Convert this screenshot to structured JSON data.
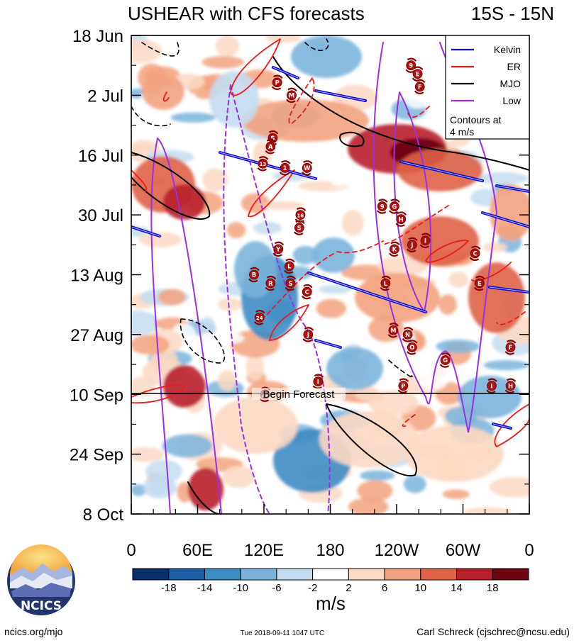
{
  "header": {
    "title": "USHEAR with CFS forecasts",
    "region": "15S - 15N"
  },
  "chart_data": {
    "type": "heatmap",
    "title": "USHEAR with CFS forecasts",
    "region": "15S - 15N",
    "x_tick_labels": [
      "0",
      "60E",
      "120E",
      "180",
      "120W",
      "60W",
      "0"
    ],
    "x_tick_values_deg_east": [
      0,
      60,
      120,
      180,
      240,
      300,
      360
    ],
    "y_tick_labels": [
      "18 Jun",
      "2 Jul",
      "16 Jul",
      "30 Jul",
      "13 Aug",
      "27 Aug",
      "10 Sep",
      "24 Sep",
      "8 Oct"
    ],
    "forecast_start_date": "10 Sep",
    "forecast_label": "Begin Forecast",
    "colorbar": {
      "unit_label": "m/s",
      "tick_labels": [
        "-18",
        "-14",
        "-10",
        "-6",
        "-2",
        "2",
        "6",
        "10",
        "14",
        "18"
      ],
      "colors": [
        "#08306b",
        "#1c5fa6",
        "#3d8cc4",
        "#7ab4dc",
        "#c4dcef",
        "#ffffff",
        "#fcd9c3",
        "#f3a37f",
        "#de6347",
        "#b8202b",
        "#6b0313"
      ]
    },
    "legend": {
      "placement": "top-right",
      "entries": [
        {
          "name": "Kelvin",
          "color": "#0b0bd8"
        },
        {
          "name": "ER",
          "color": "#ee1a1a"
        },
        {
          "name": "MJO",
          "color": "#000000"
        },
        {
          "name": "Low",
          "color": "#9a30e6"
        }
      ],
      "note_lines": [
        "Contours at",
        "4 m/s"
      ]
    },
    "storm_markers": [
      {
        "label": "9",
        "lon": 253,
        "date": "25 Jun"
      },
      {
        "label": "E",
        "lon": 259,
        "date": "27 Jun"
      },
      {
        "label": "P",
        "lon": 132,
        "date": "29 Jun"
      },
      {
        "label": "F",
        "lon": 261,
        "date": "30 Jun"
      },
      {
        "label": "M",
        "lon": 145,
        "date": "2 Jul"
      },
      {
        "label": "S",
        "lon": 128,
        "date": "12 Jul"
      },
      {
        "label": "A",
        "lon": 126,
        "date": "14 Jul"
      },
      {
        "label": "13",
        "lon": 119,
        "date": "18 Jul"
      },
      {
        "label": "1",
        "lon": 139,
        "date": "19 Jul"
      },
      {
        "label": "W",
        "lon": 159,
        "date": "19 Jul"
      },
      {
        "label": "9",
        "lon": 227,
        "date": "28 Jul"
      },
      {
        "label": "G",
        "lon": 238,
        "date": "28 Jul"
      },
      {
        "label": "16",
        "lon": 153,
        "date": "30 Jul"
      },
      {
        "label": "H",
        "lon": 244,
        "date": "31 Jul"
      },
      {
        "label": "S",
        "lon": 152,
        "date": "2 Aug"
      },
      {
        "label": "I",
        "lon": 266,
        "date": "5 Aug"
      },
      {
        "label": "J",
        "lon": 254,
        "date": "6 Aug"
      },
      {
        "label": "Y",
        "lon": 133,
        "date": "7 Aug"
      },
      {
        "label": "K",
        "lon": 238,
        "date": "7 Aug"
      },
      {
        "label": "C",
        "lon": 311,
        "date": "8 Aug"
      },
      {
        "label": "L",
        "lon": 143,
        "date": "11 Aug"
      },
      {
        "label": "B",
        "lon": 111,
        "date": "13 Aug"
      },
      {
        "label": "R",
        "lon": 126,
        "date": "15 Aug"
      },
      {
        "label": "S",
        "lon": 144,
        "date": "15 Aug"
      },
      {
        "label": "L",
        "lon": 230,
        "date": "15 Aug"
      },
      {
        "label": "E",
        "lon": 315,
        "date": "15 Aug"
      },
      {
        "label": "C",
        "lon": 159,
        "date": "17 Aug"
      },
      {
        "label": "24",
        "lon": 116,
        "date": "23 Aug"
      },
      {
        "label": "M",
        "lon": 237,
        "date": "26 Aug"
      },
      {
        "label": "J",
        "lon": 160,
        "date": "27 Aug"
      },
      {
        "label": "N",
        "lon": 250,
        "date": "27 Aug"
      },
      {
        "label": "O",
        "lon": 254,
        "date": "30 Aug"
      },
      {
        "label": "F",
        "lon": 343,
        "date": "30 Aug"
      },
      {
        "label": "G",
        "lon": 284,
        "date": "2 Sep"
      },
      {
        "label": "I",
        "lon": 169,
        "date": "7 Sep"
      },
      {
        "label": "P",
        "lon": 246,
        "date": "8 Sep"
      },
      {
        "label": "I",
        "lon": 326,
        "date": "8 Sep"
      },
      {
        "label": "H",
        "lon": 343,
        "date": "8 Sep"
      },
      {
        "label": "27",
        "lon": 121,
        "date": "10 Sep"
      }
    ]
  },
  "footer": {
    "logo_text": "NCICS",
    "site": "ncics.org/mjo",
    "timestamp": "Tue 2018-09-11 1047 UTC",
    "author": "Carl Schreck (cjschrec@ncsu.edu)"
  }
}
